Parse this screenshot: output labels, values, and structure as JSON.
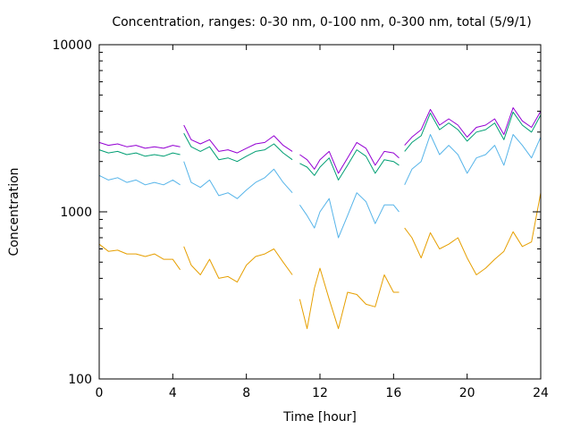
{
  "chart_data": {
    "type": "line",
    "title": "Concentration, ranges: 0-30 nm, 0-100 nm, 0-300 nm, total (5/9/1)",
    "xlabel": "Time [hour]",
    "ylabel": "Concentration",
    "xlim": [
      0,
      24
    ],
    "ylim": [
      100,
      10000
    ],
    "yscale": "log",
    "xticks": [
      0,
      4,
      8,
      12,
      16,
      20,
      24
    ],
    "yticks": [
      100,
      1000,
      10000
    ],
    "grid": false,
    "legend": "none",
    "gaps": [
      [
        4.4,
        4.6
      ],
      [
        10.5,
        10.9
      ],
      [
        16.3,
        16.6
      ]
    ],
    "x": [
      0,
      0.5,
      1,
      1.5,
      2,
      2.5,
      3,
      3.5,
      4,
      4.4,
      4.6,
      5,
      5.5,
      6,
      6.5,
      7,
      7.5,
      8,
      8.5,
      9,
      9.5,
      10,
      10.5,
      10.9,
      11.3,
      11.7,
      12,
      12.5,
      13,
      13.5,
      14,
      14.5,
      15,
      15.5,
      16,
      16.3,
      16.6,
      17,
      17.5,
      18,
      18.5,
      19,
      19.5,
      20,
      20.5,
      21,
      21.5,
      22,
      22.5,
      23,
      23.5,
      24
    ],
    "series": [
      {
        "color": "#9400d3",
        "values": [
          2600,
          2500,
          2550,
          2450,
          2500,
          2400,
          2450,
          2400,
          2500,
          2450,
          3300,
          2700,
          2550,
          2700,
          2300,
          2350,
          2250,
          2400,
          2550,
          2600,
          2850,
          2500,
          2300,
          2200,
          2050,
          1800,
          2050,
          2300,
          1700,
          2100,
          2600,
          2400,
          1900,
          2300,
          2250,
          2100,
          2500,
          2800,
          3100,
          4100,
          3300,
          3600,
          3300,
          2800,
          3200,
          3300,
          3600,
          2900,
          4200,
          3500,
          3200,
          4000
        ]
      },
      {
        "color": "#009e73",
        "values": [
          2350,
          2250,
          2300,
          2200,
          2250,
          2150,
          2200,
          2150,
          2250,
          2200,
          2950,
          2450,
          2300,
          2450,
          2050,
          2100,
          2000,
          2150,
          2300,
          2350,
          2550,
          2250,
          2050,
          1950,
          1850,
          1650,
          1850,
          2100,
          1550,
          1900,
          2350,
          2150,
          1700,
          2050,
          2000,
          1900,
          2300,
          2600,
          2850,
          3900,
          3100,
          3400,
          3100,
          2650,
          3000,
          3100,
          3400,
          2700,
          3950,
          3300,
          3000,
          3800
        ]
      },
      {
        "color": "#56b4e9",
        "values": [
          1650,
          1550,
          1600,
          1500,
          1550,
          1450,
          1500,
          1450,
          1550,
          1450,
          2000,
          1500,
          1400,
          1550,
          1250,
          1300,
          1200,
          1350,
          1500,
          1600,
          1800,
          1500,
          1300,
          1100,
          950,
          800,
          1000,
          1200,
          700,
          950,
          1300,
          1150,
          850,
          1100,
          1100,
          1000,
          1450,
          1800,
          2000,
          2900,
          2200,
          2500,
          2200,
          1700,
          2100,
          2200,
          2500,
          1900,
          2900,
          2500,
          2100,
          2800
        ]
      },
      {
        "color": "#e69f00",
        "values": [
          640,
          580,
          590,
          560,
          560,
          540,
          560,
          520,
          520,
          450,
          620,
          480,
          420,
          520,
          400,
          410,
          380,
          480,
          540,
          560,
          600,
          500,
          420,
          300,
          200,
          350,
          460,
          300,
          200,
          330,
          320,
          280,
          270,
          420,
          330,
          330,
          800,
          700,
          530,
          750,
          600,
          640,
          700,
          530,
          420,
          460,
          520,
          580,
          760,
          620,
          660,
          1300
        ]
      }
    ]
  }
}
